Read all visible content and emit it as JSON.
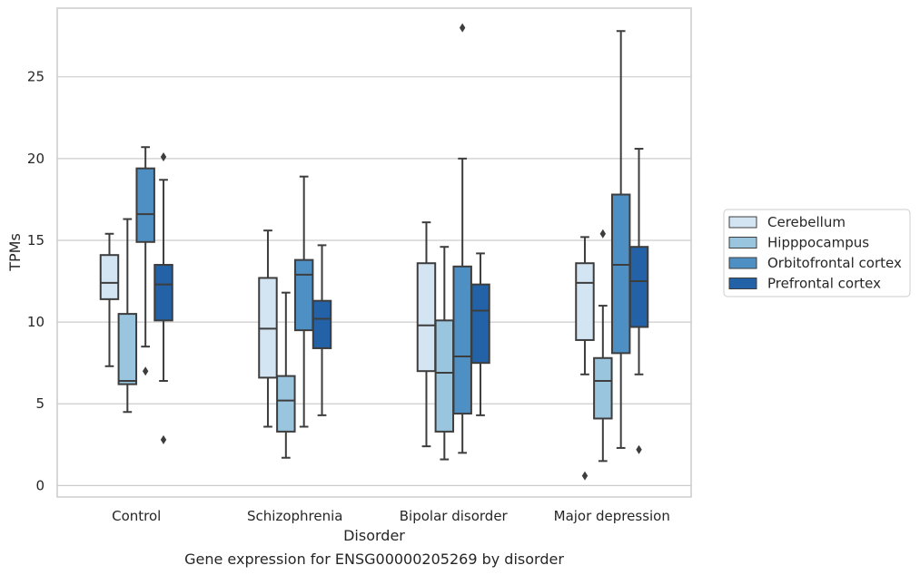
{
  "chart_data": {
    "type": "box",
    "title": "Gene expression for ENSG00000205269 by disorder",
    "xlabel": "Disorder",
    "ylabel": "TPMs",
    "categories": [
      "Control",
      "Schizophrenia",
      "Bipolar disorder",
      "Major depression"
    ],
    "ylim": [
      -0.7,
      29.2
    ],
    "yticks": [
      0,
      5,
      10,
      15,
      20,
      25
    ],
    "grid": true,
    "legend_position": "right",
    "series": [
      {
        "name": "Cerebellum",
        "color": "#d3e4f3",
        "boxes": [
          {
            "whislo": 7.3,
            "q1": 11.4,
            "med": 12.4,
            "q3": 14.1,
            "whishi": 15.4,
            "fliers": []
          },
          {
            "whislo": 3.6,
            "q1": 6.6,
            "med": 9.6,
            "q3": 12.7,
            "whishi": 15.6,
            "fliers": []
          },
          {
            "whislo": 2.4,
            "q1": 7.0,
            "med": 9.8,
            "q3": 13.6,
            "whishi": 16.1,
            "fliers": []
          },
          {
            "whislo": 6.8,
            "q1": 8.9,
            "med": 12.4,
            "q3": 13.6,
            "whishi": 15.2,
            "fliers": [
              0.6
            ]
          }
        ]
      },
      {
        "name": "Hipppocampus",
        "color": "#9ac5df",
        "boxes": [
          {
            "whislo": 4.5,
            "q1": 6.2,
            "med": 6.4,
            "q3": 10.5,
            "whishi": 16.3,
            "fliers": []
          },
          {
            "whislo": 1.7,
            "q1": 3.3,
            "med": 5.2,
            "q3": 6.7,
            "whishi": 11.8,
            "fliers": []
          },
          {
            "whislo": 1.6,
            "q1": 3.3,
            "med": 6.9,
            "q3": 10.1,
            "whishi": 14.6,
            "fliers": []
          },
          {
            "whislo": 1.5,
            "q1": 4.1,
            "med": 6.4,
            "q3": 7.8,
            "whishi": 11.0,
            "fliers": [
              15.4
            ]
          }
        ]
      },
      {
        "name": "Orbitofrontal cortex",
        "color": "#4f90c4",
        "boxes": [
          {
            "whislo": 8.5,
            "q1": 14.9,
            "med": 16.6,
            "q3": 19.4,
            "whishi": 20.7,
            "fliers": [
              7.0
            ]
          },
          {
            "whislo": 3.6,
            "q1": 9.5,
            "med": 12.9,
            "q3": 13.8,
            "whishi": 18.9,
            "fliers": []
          },
          {
            "whislo": 2.0,
            "q1": 4.4,
            "med": 7.9,
            "q3": 13.4,
            "whishi": 20.0,
            "fliers": [
              28.0
            ]
          },
          {
            "whislo": 2.3,
            "q1": 8.1,
            "med": 13.5,
            "q3": 17.8,
            "whishi": 27.8,
            "fliers": []
          }
        ]
      },
      {
        "name": "Prefrontal cortex",
        "color": "#2362a6",
        "boxes": [
          {
            "whislo": 6.4,
            "q1": 10.1,
            "med": 12.3,
            "q3": 13.5,
            "whishi": 18.7,
            "fliers": [
              2.8,
              20.1
            ]
          },
          {
            "whislo": 4.3,
            "q1": 8.4,
            "med": 10.2,
            "q3": 11.3,
            "whishi": 14.7,
            "fliers": []
          },
          {
            "whislo": 4.3,
            "q1": 7.5,
            "med": 10.7,
            "q3": 12.3,
            "whishi": 14.2,
            "fliers": []
          },
          {
            "whislo": 6.8,
            "q1": 9.7,
            "med": 12.5,
            "q3": 14.6,
            "whishi": 20.6,
            "fliers": [
              2.2
            ]
          }
        ]
      }
    ]
  }
}
